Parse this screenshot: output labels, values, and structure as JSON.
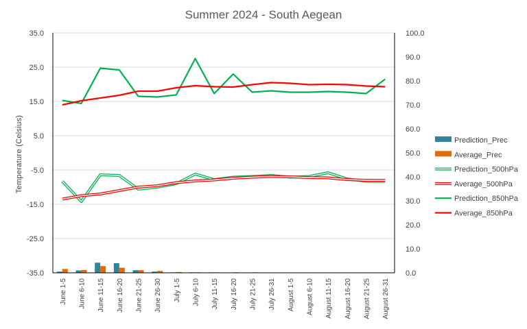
{
  "chart_data": {
    "type": "line",
    "title": "Summer 2024 - South Aegean",
    "ylabel": "Temperature (Celsius)",
    "y2label": "",
    "ylim": [
      -35,
      35
    ],
    "y_ticks": [
      35.0,
      25.0,
      15.0,
      5.0,
      -5.0,
      -15.0,
      -25.0,
      -35.0
    ],
    "y2lim": [
      0,
      100
    ],
    "y2_ticks": [
      100.0,
      90.0,
      80.0,
      70.0,
      60.0,
      50.0,
      40.0,
      30.0,
      20.0,
      10.0,
      0.0
    ],
    "categories": [
      "June 1-5",
      "June 6-10",
      "June 11-15",
      "June 16-20",
      "June 21-25",
      "June 26-30",
      "July 1-5",
      "July 6-10",
      "July 11-15",
      "July 16-20",
      "July 21-25",
      "July 26-31",
      "August 1-5",
      "August 6-10",
      "August 11-15",
      "August 16-20",
      "August 21-25",
      "August 26-31"
    ],
    "grid": true,
    "legend_position": "right",
    "series": [
      {
        "name": "Prediction_Prec",
        "kind": "bar",
        "axis": "right",
        "color": "#31849b",
        "values": [
          0.5,
          1.0,
          4.2,
          4.0,
          1.1,
          0.5,
          0.2,
          0.2,
          0.2,
          0.1,
          0.1,
          0.1,
          0.1,
          0.1,
          0.1,
          0.1,
          0.1,
          0.1
        ]
      },
      {
        "name": "Average_Prec",
        "kind": "bar",
        "axis": "right",
        "color": "#e36c09",
        "values": [
          1.6,
          1.2,
          2.8,
          2.1,
          1.1,
          0.8,
          0.3,
          0.2,
          0.2,
          0.2,
          0.2,
          0.1,
          0.1,
          0.1,
          0.1,
          0.1,
          0.1,
          0.1
        ]
      },
      {
        "name": "Prediction_500hPa",
        "kind": "double-line",
        "axis": "left",
        "color": "#00b050",
        "values": [
          -8.3,
          -14.2,
          -6.4,
          -6.6,
          -10.6,
          -10.0,
          -9.0,
          -6.2,
          -7.8,
          -7.1,
          -6.9,
          -6.6,
          -7.1,
          -6.9,
          -5.8,
          -7.6,
          -8.3,
          -8.3
        ]
      },
      {
        "name": "Average_500hPa",
        "kind": "double-line",
        "axis": "left",
        "color": "#ff0000",
        "values": [
          -13.5,
          -12.5,
          -12.0,
          -11.0,
          -10.0,
          -9.6,
          -8.7,
          -8.2,
          -7.9,
          -7.4,
          -7.1,
          -6.9,
          -7.0,
          -7.2,
          -7.3,
          -7.8,
          -8.0,
          -8.0
        ]
      },
      {
        "name": "Prediction_850hPa",
        "kind": "line",
        "axis": "left",
        "color": "#00b050",
        "values": [
          15.3,
          14.4,
          24.7,
          24.2,
          16.5,
          16.3,
          16.9,
          27.5,
          17.3,
          23.0,
          17.7,
          18.1,
          17.7,
          17.7,
          17.9,
          17.7,
          17.3,
          21.5
        ]
      },
      {
        "name": "Average_850hPa",
        "kind": "line",
        "axis": "left",
        "color": "#ff0000",
        "values": [
          14.0,
          15.2,
          16.0,
          16.8,
          18.0,
          18.0,
          19.0,
          19.6,
          19.3,
          19.2,
          19.9,
          20.5,
          20.3,
          19.9,
          20.0,
          19.9,
          19.5,
          19.3
        ]
      }
    ]
  }
}
